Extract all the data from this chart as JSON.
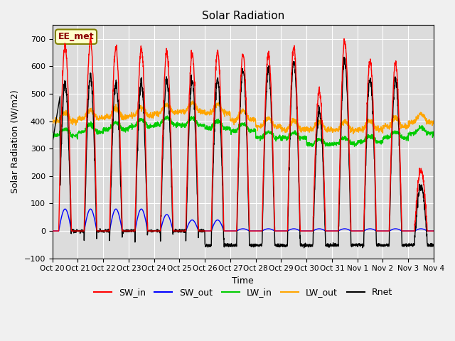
{
  "title": "Solar Radiation",
  "ylabel": "Solar Radiation (W/m2)",
  "xlabel": "Time",
  "ylim": [
    -100,
    750
  ],
  "yticks": [
    -100,
    0,
    100,
    200,
    300,
    400,
    500,
    600,
    700
  ],
  "bg_color": "#dcdcdc",
  "fig_color": "#f0f0f0",
  "line_colors": {
    "SW_in": "#ff0000",
    "SW_out": "#0000ff",
    "LW_in": "#00cc00",
    "LW_out": "#ffa500",
    "Rnet": "#000000"
  },
  "legend_label": "EE_met",
  "x_tick_labels": [
    "Oct 20",
    "Oct 21",
    "Oct 22",
    "Oct 23",
    "Oct 24",
    "Oct 25",
    "Oct 26",
    "Oct 27",
    "Oct 28",
    "Oct 29",
    "Oct 30",
    "Oct 31",
    "Nov 1",
    "Nov 2",
    "Nov 3",
    "Nov 4"
  ],
  "n_days": 15,
  "points_per_day": 144
}
